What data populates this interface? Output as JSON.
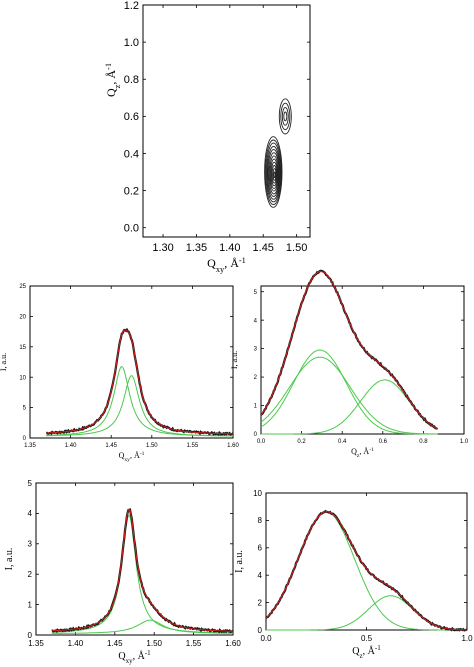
{
  "figure": {
    "panels_note": ""
  },
  "chart_data": [
    {
      "id": "top",
      "type": "contour",
      "xlabel": "Q",
      "xlabel_sub": "xy",
      "xlabel_unit": ", Å",
      "xlabel_sup": "-1",
      "ylabel": "Q",
      "ylabel_sub": "z",
      "ylabel_unit": ", Å",
      "ylabel_sup": "-1",
      "xlim": [
        1.27,
        1.52
      ],
      "ylim": [
        -0.05,
        1.2
      ],
      "xticks": [
        "1.30",
        "1.35",
        "1.40",
        "1.45",
        "1.50"
      ],
      "xtick_values": [
        1.3,
        1.35,
        1.4,
        1.45,
        1.5
      ],
      "yticks": [
        "0.0",
        "0.2",
        "0.4",
        "0.6",
        "0.8",
        "1.0",
        "1.2"
      ],
      "ytick_values": [
        0.0,
        0.2,
        0.4,
        0.6,
        0.8,
        1.0,
        1.2
      ],
      "peaks": [
        {
          "cx": 1.465,
          "cz": 0.3,
          "rx": 0.013,
          "rz": 0.19,
          "levels": 12
        },
        {
          "cx": 1.483,
          "cz": 0.6,
          "rx": 0.009,
          "rz": 0.095,
          "levels": 4
        }
      ],
      "grid": false
    },
    {
      "id": "mid-left",
      "type": "line",
      "xlabel": "Q",
      "xlabel_sub": "xy",
      "xlabel_unit": ", Å",
      "xlabel_sup": "-1",
      "ylabel": "I, a.u.",
      "xlim": [
        1.35,
        1.6
      ],
      "ylim": [
        0,
        25
      ],
      "xticks": [
        "1.35",
        "1.40",
        "1.45",
        "1.50",
        "1.55",
        "1.60"
      ],
      "xtick_values": [
        1.35,
        1.4,
        1.45,
        1.5,
        1.55,
        1.6
      ],
      "yticks": [
        "0",
        "5",
        "10",
        "15",
        "20",
        "25"
      ],
      "ytick_values": [
        0,
        5,
        10,
        15,
        20,
        25
      ],
      "components": [
        {
          "kind": "lorentz",
          "center": 1.463,
          "amp": 11.5,
          "width": 0.012
        },
        {
          "kind": "lorentz",
          "center": 1.475,
          "amp": 10.0,
          "width": 0.012
        }
      ],
      "baseline": 0.5,
      "data_range": [
        1.37,
        1.6
      ],
      "grid": false
    },
    {
      "id": "mid-right",
      "type": "line",
      "xlabel": "Q",
      "xlabel_sub": "z",
      "xlabel_unit": ", Å",
      "xlabel_sup": "-1",
      "ylabel": "I, a.u.",
      "xlim": [
        0,
        1.0
      ],
      "ylim": [
        0,
        5.2
      ],
      "xticks": [
        "0.0",
        "0.2",
        "0.4",
        "0.6",
        "0.8",
        "1.0"
      ],
      "xtick_values": [
        0.0,
        0.2,
        0.4,
        0.6,
        0.8,
        1.0
      ],
      "yticks": [
        "0",
        "1",
        "2",
        "3",
        "4",
        "5"
      ],
      "ytick_values": [
        0,
        1,
        2,
        3,
        4,
        5
      ],
      "components": [
        {
          "kind": "gauss",
          "center": 0.29,
          "amp": 2.95,
          "width": 0.13
        },
        {
          "kind": "gauss",
          "center": 0.29,
          "amp": 2.7,
          "width": 0.15
        },
        {
          "kind": "gauss",
          "center": 0.61,
          "amp": 1.9,
          "width": 0.12
        }
      ],
      "baseline": 0.0,
      "data_range": [
        0.0,
        0.87
      ],
      "grid": false
    },
    {
      "id": "bottom-left",
      "type": "line",
      "xlabel": "Q",
      "xlabel_sub": "xy",
      "xlabel_unit": ", Å",
      "xlabel_sup": "-1",
      "ylabel": "I, a.u.",
      "xlim": [
        1.35,
        1.6
      ],
      "ylim": [
        0,
        5
      ],
      "xticks": [
        "1.35",
        "1.40",
        "1.45",
        "1.50",
        "1.55",
        "1.60"
      ],
      "xtick_values": [
        1.35,
        1.4,
        1.45,
        1.5,
        1.55,
        1.6
      ],
      "yticks": [
        "0",
        "1",
        "2",
        "3",
        "4",
        "5"
      ],
      "ytick_values": [
        0,
        1,
        2,
        3,
        4,
        5
      ],
      "components": [
        {
          "kind": "lorentz",
          "center": 1.468,
          "amp": 3.9,
          "width": 0.011
        },
        {
          "kind": "lorentz",
          "center": 1.495,
          "amp": 0.45,
          "width": 0.02
        }
      ],
      "baseline": 0.08,
      "data_range": [
        1.37,
        1.6
      ],
      "grid": false
    },
    {
      "id": "bottom-right",
      "type": "line",
      "xlabel": "Q",
      "xlabel_sub": "z",
      "xlabel_unit": ", Å",
      "xlabel_sup": "-1",
      "ylabel": "I, a.u.",
      "xlim": [
        0,
        1.0
      ],
      "ylim": [
        0,
        10
      ],
      "xticks": [
        "0.0",
        "0.5",
        "1.0"
      ],
      "xtick_values": [
        0.0,
        0.5,
        1.0
      ],
      "yticks": [
        "0",
        "2",
        "4",
        "6",
        "8",
        "10"
      ],
      "ytick_values": [
        0,
        2,
        4,
        6,
        8,
        10
      ],
      "components": [
        {
          "kind": "gauss",
          "center": 0.3,
          "amp": 8.6,
          "width": 0.14
        },
        {
          "kind": "gauss",
          "center": 0.62,
          "amp": 2.5,
          "width": 0.11
        }
      ],
      "baseline": 0.0,
      "data_range": [
        0.0,
        1.0
      ],
      "grid": false
    }
  ],
  "colors": {
    "data": "#1a1a1a",
    "fit": "#d62020",
    "component": "#4cc94c",
    "axis": "#000000"
  }
}
